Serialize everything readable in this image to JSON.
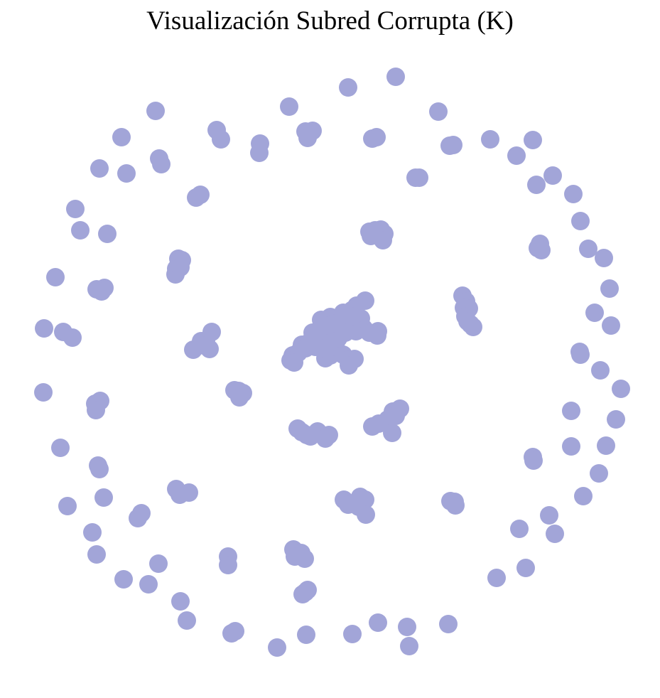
{
  "title": "Visualización Subred Corrupta (K)",
  "node_color": "#a2a5d8",
  "edges_visible": false
}
